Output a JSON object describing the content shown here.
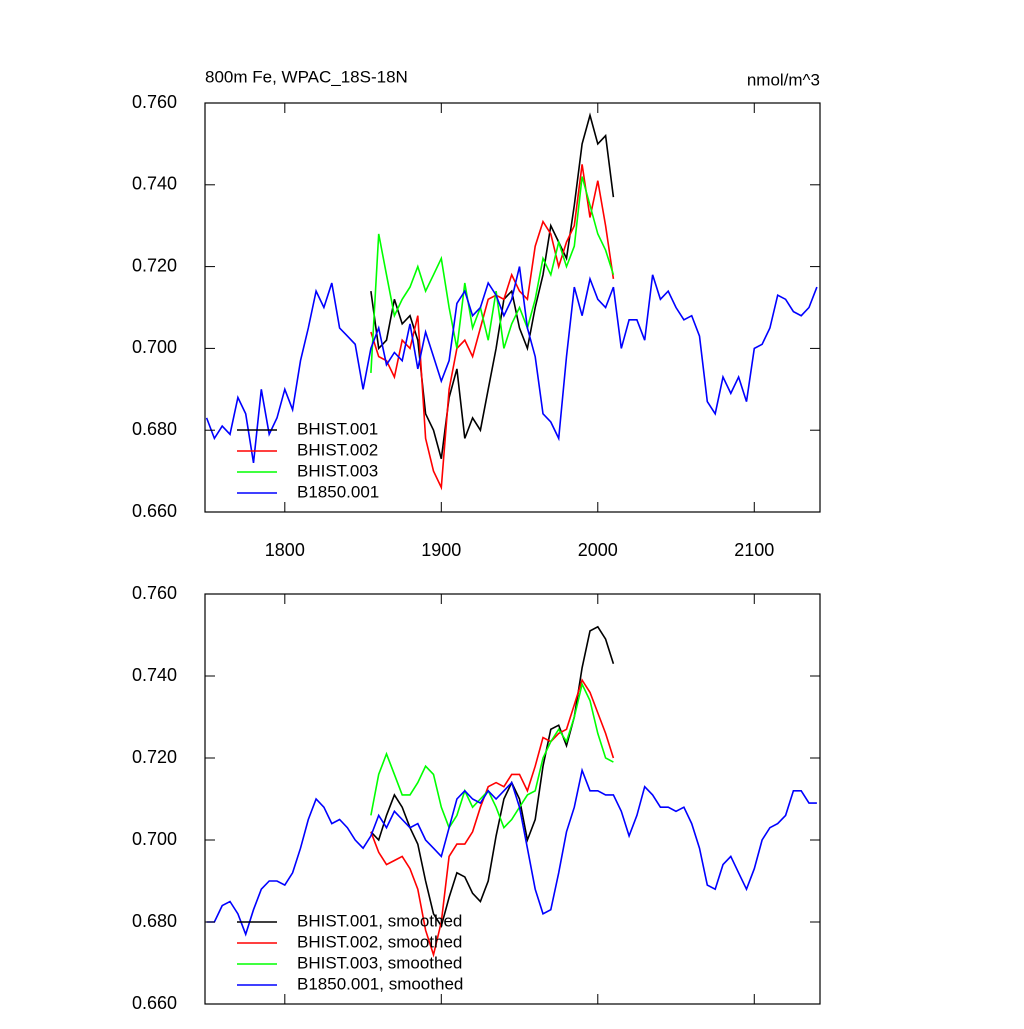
{
  "chart_data": [
    {
      "type": "line",
      "title": "800m Fe, WPAC_18S-18N",
      "subtitle": "nmol/m^3",
      "xlim": [
        1749,
        2142
      ],
      "xticks": [
        1800,
        1900,
        2000,
        2100
      ],
      "xtick_labels": true,
      "ylim": [
        0.66,
        0.76
      ],
      "yticks": [
        {
          "value": 0.66,
          "label": "0.660"
        },
        {
          "value": 0.68,
          "label": "0.680"
        },
        {
          "value": 0.7,
          "label": "0.700"
        },
        {
          "value": 0.72,
          "label": "0.720"
        },
        {
          "value": 0.74,
          "label": "0.740"
        },
        {
          "value": 0.76,
          "label": "0.760"
        }
      ],
      "legend": "lower-left",
      "series": [
        {
          "name": "BHIST.001",
          "color": "#000000",
          "x": [
            1855,
            1860,
            1865,
            1870,
            1875,
            1880,
            1885,
            1890,
            1895,
            1900,
            1905,
            1910,
            1915,
            1920,
            1925,
            1930,
            1935,
            1940,
            1945,
            1950,
            1955,
            1960,
            1965,
            1970,
            1975,
            1980,
            1985,
            1990,
            1995,
            2000,
            2005,
            2010
          ],
          "values": [
            0.714,
            0.7,
            0.702,
            0.712,
            0.706,
            0.708,
            0.702,
            0.684,
            0.68,
            0.673,
            0.688,
            0.695,
            0.678,
            0.683,
            0.68,
            0.69,
            0.7,
            0.712,
            0.714,
            0.705,
            0.7,
            0.71,
            0.718,
            0.73,
            0.726,
            0.722,
            0.735,
            0.75,
            0.757,
            0.75,
            0.752,
            0.737
          ]
        },
        {
          "name": "BHIST.002",
          "color": "#ff0000",
          "x": [
            1855,
            1860,
            1865,
            1870,
            1875,
            1880,
            1885,
            1890,
            1895,
            1900,
            1905,
            1910,
            1915,
            1920,
            1925,
            1930,
            1935,
            1940,
            1945,
            1950,
            1955,
            1960,
            1965,
            1970,
            1975,
            1980,
            1985,
            1990,
            1995,
            2000,
            2005,
            2010
          ],
          "values": [
            0.704,
            0.698,
            0.697,
            0.693,
            0.702,
            0.7,
            0.708,
            0.678,
            0.67,
            0.666,
            0.69,
            0.7,
            0.702,
            0.698,
            0.705,
            0.712,
            0.713,
            0.712,
            0.718,
            0.714,
            0.712,
            0.725,
            0.731,
            0.728,
            0.72,
            0.726,
            0.73,
            0.745,
            0.732,
            0.741,
            0.73,
            0.717
          ]
        },
        {
          "name": "BHIST.003",
          "color": "#00ff00",
          "x": [
            1855,
            1860,
            1865,
            1870,
            1875,
            1880,
            1885,
            1890,
            1895,
            1900,
            1905,
            1910,
            1915,
            1920,
            1925,
            1930,
            1935,
            1940,
            1945,
            1950,
            1955,
            1960,
            1965,
            1970,
            1975,
            1980,
            1985,
            1990,
            1995,
            2000,
            2005,
            2010
          ],
          "values": [
            0.694,
            0.728,
            0.718,
            0.708,
            0.712,
            0.715,
            0.72,
            0.714,
            0.718,
            0.722,
            0.71,
            0.7,
            0.716,
            0.705,
            0.71,
            0.702,
            0.714,
            0.7,
            0.706,
            0.71,
            0.705,
            0.712,
            0.722,
            0.718,
            0.726,
            0.72,
            0.725,
            0.742,
            0.735,
            0.728,
            0.724,
            0.718
          ]
        },
        {
          "name": "B1850.001",
          "color": "#0000ff",
          "x": [
            1750,
            1755,
            1760,
            1765,
            1770,
            1775,
            1780,
            1785,
            1790,
            1795,
            1800,
            1805,
            1810,
            1815,
            1820,
            1825,
            1830,
            1835,
            1840,
            1845,
            1850,
            1855,
            1860,
            1865,
            1870,
            1875,
            1880,
            1885,
            1890,
            1895,
            1900,
            1905,
            1910,
            1915,
            1920,
            1925,
            1930,
            1935,
            1940,
            1945,
            1950,
            1955,
            1960,
            1965,
            1970,
            1975,
            1980,
            1985,
            1990,
            1995,
            2000,
            2005,
            2010,
            2015,
            2020,
            2025,
            2030,
            2035,
            2040,
            2045,
            2050,
            2055,
            2060,
            2065,
            2070,
            2075,
            2080,
            2085,
            2090,
            2095,
            2100,
            2105,
            2110,
            2115,
            2120,
            2125,
            2130,
            2135,
            2140
          ],
          "values": [
            0.683,
            0.678,
            0.681,
            0.679,
            0.688,
            0.684,
            0.672,
            0.69,
            0.679,
            0.683,
            0.69,
            0.685,
            0.697,
            0.705,
            0.714,
            0.71,
            0.716,
            0.705,
            0.703,
            0.701,
            0.69,
            0.7,
            0.705,
            0.696,
            0.699,
            0.697,
            0.706,
            0.695,
            0.704,
            0.698,
            0.692,
            0.697,
            0.711,
            0.714,
            0.708,
            0.71,
            0.716,
            0.713,
            0.708,
            0.712,
            0.72,
            0.705,
            0.698,
            0.684,
            0.682,
            0.678,
            0.698,
            0.715,
            0.708,
            0.717,
            0.712,
            0.71,
            0.715,
            0.7,
            0.707,
            0.707,
            0.702,
            0.718,
            0.712,
            0.714,
            0.71,
            0.707,
            0.708,
            0.703,
            0.687,
            0.684,
            0.693,
            0.689,
            0.693,
            0.687,
            0.7,
            0.701,
            0.705,
            0.713,
            0.712,
            0.709,
            0.708,
            0.71,
            0.715
          ]
        }
      ]
    },
    {
      "type": "line",
      "xlim": [
        1749,
        2142
      ],
      "xticks": [
        1800,
        1900,
        2000,
        2100
      ],
      "xtick_labels": false,
      "ylim": [
        0.66,
        0.76
      ],
      "yticks": [
        {
          "value": 0.66,
          "label": "0.660"
        },
        {
          "value": 0.68,
          "label": "0.680"
        },
        {
          "value": 0.7,
          "label": "0.700"
        },
        {
          "value": 0.72,
          "label": "0.720"
        },
        {
          "value": 0.74,
          "label": "0.740"
        },
        {
          "value": 0.76,
          "label": "0.760"
        }
      ],
      "legend": "lower-left",
      "series": [
        {
          "name": "BHIST.001, smoothed",
          "color": "#000000",
          "x": [
            1855,
            1860,
            1865,
            1870,
            1875,
            1880,
            1885,
            1890,
            1895,
            1900,
            1905,
            1910,
            1915,
            1920,
            1925,
            1930,
            1935,
            1940,
            1945,
            1950,
            1955,
            1960,
            1965,
            1970,
            1975,
            1980,
            1985,
            1990,
            1995,
            2000,
            2005,
            2010
          ],
          "values": [
            0.702,
            0.7,
            0.706,
            0.711,
            0.708,
            0.703,
            0.699,
            0.69,
            0.682,
            0.679,
            0.686,
            0.692,
            0.691,
            0.687,
            0.685,
            0.69,
            0.701,
            0.71,
            0.714,
            0.71,
            0.7,
            0.705,
            0.718,
            0.727,
            0.728,
            0.723,
            0.73,
            0.742,
            0.751,
            0.752,
            0.749,
            0.743
          ]
        },
        {
          "name": "BHIST.002, smoothed",
          "color": "#ff0000",
          "x": [
            1855,
            1860,
            1865,
            1870,
            1875,
            1880,
            1885,
            1890,
            1895,
            1900,
            1905,
            1910,
            1915,
            1920,
            1925,
            1930,
            1935,
            1940,
            1945,
            1950,
            1955,
            1960,
            1965,
            1970,
            1975,
            1980,
            1985,
            1990,
            1995,
            2000,
            2005,
            2010
          ],
          "values": [
            0.702,
            0.697,
            0.694,
            0.695,
            0.696,
            0.693,
            0.688,
            0.678,
            0.672,
            0.68,
            0.696,
            0.699,
            0.699,
            0.702,
            0.708,
            0.713,
            0.714,
            0.713,
            0.716,
            0.716,
            0.712,
            0.718,
            0.725,
            0.724,
            0.726,
            0.727,
            0.733,
            0.739,
            0.736,
            0.731,
            0.726,
            0.72
          ]
        },
        {
          "name": "BHIST.003, smoothed",
          "color": "#00ff00",
          "x": [
            1855,
            1860,
            1865,
            1870,
            1875,
            1880,
            1885,
            1890,
            1895,
            1900,
            1905,
            1910,
            1915,
            1920,
            1925,
            1930,
            1935,
            1940,
            1945,
            1950,
            1955,
            1960,
            1965,
            1970,
            1975,
            1980,
            1985,
            1990,
            1995,
            2000,
            2005,
            2010
          ],
          "values": [
            0.706,
            0.716,
            0.721,
            0.716,
            0.711,
            0.711,
            0.714,
            0.718,
            0.716,
            0.708,
            0.703,
            0.706,
            0.712,
            0.708,
            0.71,
            0.712,
            0.708,
            0.703,
            0.705,
            0.708,
            0.711,
            0.712,
            0.72,
            0.724,
            0.727,
            0.724,
            0.73,
            0.738,
            0.734,
            0.726,
            0.72,
            0.719
          ]
        },
        {
          "name": "B1850.001, smoothed",
          "color": "#0000ff",
          "x": [
            1750,
            1755,
            1760,
            1765,
            1770,
            1775,
            1780,
            1785,
            1790,
            1795,
            1800,
            1805,
            1810,
            1815,
            1820,
            1825,
            1830,
            1835,
            1840,
            1845,
            1850,
            1855,
            1860,
            1865,
            1870,
            1875,
            1880,
            1885,
            1890,
            1895,
            1900,
            1905,
            1910,
            1915,
            1920,
            1925,
            1930,
            1935,
            1940,
            1945,
            1950,
            1955,
            1960,
            1965,
            1970,
            1975,
            1980,
            1985,
            1990,
            1995,
            2000,
            2005,
            2010,
            2015,
            2020,
            2025,
            2030,
            2035,
            2040,
            2045,
            2050,
            2055,
            2060,
            2065,
            2070,
            2075,
            2080,
            2085,
            2090,
            2095,
            2100,
            2105,
            2110,
            2115,
            2120,
            2125,
            2130,
            2135,
            2140
          ],
          "values": [
            0.68,
            0.68,
            0.684,
            0.685,
            0.682,
            0.677,
            0.683,
            0.688,
            0.69,
            0.69,
            0.689,
            0.692,
            0.698,
            0.705,
            0.71,
            0.708,
            0.704,
            0.705,
            0.703,
            0.7,
            0.698,
            0.701,
            0.706,
            0.703,
            0.707,
            0.705,
            0.703,
            0.704,
            0.7,
            0.698,
            0.696,
            0.703,
            0.71,
            0.712,
            0.71,
            0.709,
            0.712,
            0.71,
            0.712,
            0.714,
            0.708,
            0.698,
            0.688,
            0.682,
            0.683,
            0.692,
            0.702,
            0.708,
            0.717,
            0.712,
            0.712,
            0.711,
            0.711,
            0.707,
            0.701,
            0.706,
            0.713,
            0.711,
            0.708,
            0.708,
            0.707,
            0.708,
            0.704,
            0.698,
            0.689,
            0.688,
            0.694,
            0.696,
            0.692,
            0.688,
            0.693,
            0.7,
            0.703,
            0.704,
            0.706,
            0.712,
            0.712,
            0.709,
            0.709
          ]
        }
      ]
    }
  ]
}
